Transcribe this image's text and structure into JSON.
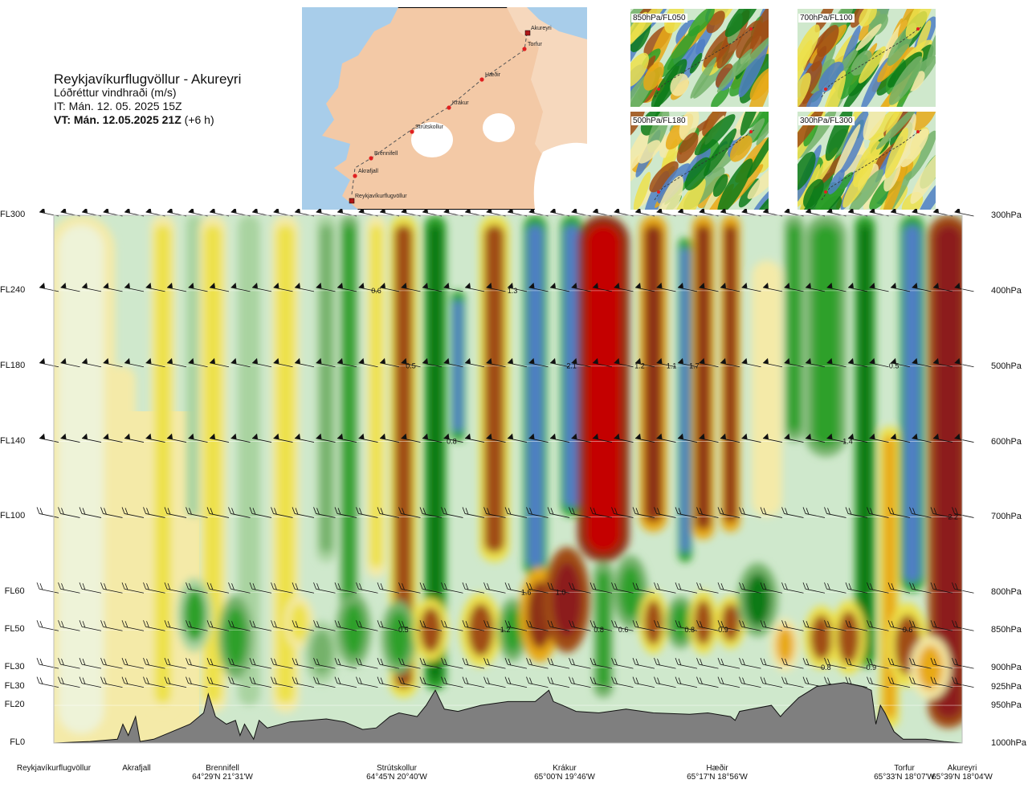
{
  "header": {
    "route": "Reykjavíkurflugvöllur - Akureyri",
    "variable": "Lóðréttur vindhraði (m/s)",
    "issue_time": "IT: Mán. 12. 05. 2025 15Z",
    "valid_time_bold": "VT: Mán. 12.05.2025 21Z",
    "valid_time_offset": "(+6 h)"
  },
  "map": {
    "stations": [
      "Reykjavíkurflugvöllur",
      "Akrafjall",
      "Brennifell",
      "Strútskollur",
      "Krákur",
      "Hæðir",
      "Torfur",
      "Akureyri"
    ],
    "colors": {
      "land": "#f3c9a6",
      "sea": "#a8cdea",
      "glacier": "#ffffff",
      "route": "#555555",
      "station": "#e02020"
    }
  },
  "mini_maps": [
    {
      "label": "850hPa/FL050"
    },
    {
      "label": "700hPa/FL100"
    },
    {
      "label": "500hPa/FL180"
    },
    {
      "label": "300hPa/FL300"
    }
  ],
  "chart_data": {
    "type": "heatmap",
    "x_stations": [
      {
        "name": "Reykjavíkurflugvöllur",
        "coord": "",
        "x": 0
      },
      {
        "name": "Akrafjall",
        "coord": "",
        "x": 0.09
      },
      {
        "name": "Brennifell",
        "coord": "64°29'N 21°31'W",
        "x": 0.18
      },
      {
        "name": "Strútskollur",
        "coord": "64°45'N 20°40'W",
        "x": 0.38
      },
      {
        "name": "Krákur",
        "coord": "65°00'N 19°46'W",
        "x": 0.57
      },
      {
        "name": "Hæðir",
        "coord": "65°17'N 18°56'W",
        "x": 0.75
      },
      {
        "name": "Torfur",
        "coord": "65°33'N 18°07'W",
        "x": 0.93
      },
      {
        "name": "Akureyri",
        "coord": "65°39'N 18°04'W",
        "x": 1.0
      }
    ],
    "levels": [
      {
        "fl": "FL300",
        "hpa": "300hPa",
        "p": 300
      },
      {
        "fl": "FL240",
        "hpa": "400hPa",
        "p": 400
      },
      {
        "fl": "FL180",
        "hpa": "500hPa",
        "p": 500
      },
      {
        "fl": "FL140",
        "hpa": "600hPa",
        "p": 600
      },
      {
        "fl": "FL100",
        "hpa": "700hPa",
        "p": 700
      },
      {
        "fl": "FL60",
        "hpa": "800hPa",
        "p": 800
      },
      {
        "fl": "FL50",
        "hpa": "850hPa",
        "p": 850
      },
      {
        "fl": "FL30",
        "hpa": "900hPa",
        "p": 900
      },
      {
        "fl": "FL30",
        "hpa": "925hPa",
        "p": 925
      },
      {
        "fl": "FL20",
        "hpa": "950hPa",
        "p": 950
      },
      {
        "fl": "FL0",
        "hpa": "1000hPa",
        "p": 1000
      }
    ],
    "y_range": [
      300,
      1000
    ],
    "bands": [
      {
        "x": 0.03,
        "w": 0.05,
        "v": 0.1,
        "top": 300,
        "bottom": 1000
      },
      {
        "x": 0.075,
        "w": 0.02,
        "v": 0.3,
        "top": 500,
        "bottom": 1000
      },
      {
        "x": 0.12,
        "w": 0.018,
        "v": 0.4,
        "top": 300,
        "bottom": 960
      },
      {
        "x": 0.155,
        "w": 0.012,
        "v": -0.2,
        "top": 300,
        "bottom": 700
      },
      {
        "x": 0.175,
        "w": 0.02,
        "v": 0.5,
        "top": 300,
        "bottom": 960
      },
      {
        "x": 0.215,
        "w": 0.016,
        "v": -0.3,
        "top": 300,
        "bottom": 950
      },
      {
        "x": 0.255,
        "w": 0.02,
        "v": 0.5,
        "top": 300,
        "bottom": 960
      },
      {
        "x": 0.3,
        "w": 0.014,
        "v": -0.5,
        "top": 300,
        "bottom": 760
      },
      {
        "x": 0.325,
        "w": 0.013,
        "v": -0.8,
        "top": 300,
        "bottom": 880
      },
      {
        "x": 0.355,
        "w": 0.014,
        "v": 0.4,
        "top": 300,
        "bottom": 780
      },
      {
        "x": 0.385,
        "w": 0.02,
        "v": 0.8,
        "top": 300,
        "bottom": 940
      },
      {
        "x": 0.42,
        "w": 0.016,
        "v": -1.0,
        "top": 300,
        "bottom": 930
      },
      {
        "x": 0.445,
        "w": 0.01,
        "v": -1.4,
        "top": 400,
        "bottom": 600
      },
      {
        "x": 0.485,
        "w": 0.022,
        "v": 0.9,
        "top": 300,
        "bottom": 760
      },
      {
        "x": 0.53,
        "w": 0.017,
        "v": -1.2,
        "top": 300,
        "bottom": 780
      },
      {
        "x": 0.57,
        "w": 0.016,
        "v": -1.5,
        "top": 300,
        "bottom": 700
      },
      {
        "x": 0.605,
        "w": 0.038,
        "v": 2.2,
        "top": 300,
        "bottom": 760
      },
      {
        "x": 0.605,
        "w": 0.014,
        "v": -0.6,
        "top": 760,
        "bottom": 940
      },
      {
        "x": 0.66,
        "w": 0.02,
        "v": 1.2,
        "top": 300,
        "bottom": 720
      },
      {
        "x": 0.695,
        "w": 0.01,
        "v": -1.2,
        "top": 330,
        "bottom": 760
      },
      {
        "x": 0.715,
        "w": 0.016,
        "v": 1.3,
        "top": 300,
        "bottom": 730
      },
      {
        "x": 0.745,
        "w": 0.014,
        "v": 1.1,
        "top": 300,
        "bottom": 720
      },
      {
        "x": 0.785,
        "w": 0.022,
        "v": 0.3,
        "top": 360,
        "bottom": 700
      },
      {
        "x": 0.815,
        "w": 0.014,
        "v": -0.6,
        "top": 300,
        "bottom": 600
      },
      {
        "x": 0.85,
        "w": 0.03,
        "v": -0.7,
        "top": 300,
        "bottom": 620
      },
      {
        "x": 0.893,
        "w": 0.015,
        "v": -1.0,
        "top": 300,
        "bottom": 900
      },
      {
        "x": 0.92,
        "w": 0.014,
        "v": 0.7,
        "top": 580,
        "bottom": 980
      },
      {
        "x": 0.945,
        "w": 0.018,
        "v": -1.2,
        "top": 300,
        "bottom": 800
      },
      {
        "x": 0.985,
        "w": 0.03,
        "v": 1.6,
        "top": 300,
        "bottom": 980
      }
    ],
    "spots": [
      {
        "x": 0.155,
        "p": 830,
        "rx": 0.012,
        "rp": 70,
        "v": -0.6
      },
      {
        "x": 0.2,
        "p": 860,
        "rx": 0.012,
        "rp": 80,
        "v": -0.7
      },
      {
        "x": 0.27,
        "p": 840,
        "rx": 0.01,
        "rp": 50,
        "v": 0.5
      },
      {
        "x": 0.295,
        "p": 880,
        "rx": 0.012,
        "rp": 60,
        "v": -0.5
      },
      {
        "x": 0.33,
        "p": 850,
        "rx": 0.012,
        "rp": 70,
        "v": -0.8
      },
      {
        "x": 0.38,
        "p": 860,
        "rx": 0.012,
        "rp": 70,
        "v": -0.8
      },
      {
        "x": 0.415,
        "p": 850,
        "rx": 0.012,
        "rp": 60,
        "v": 0.8
      },
      {
        "x": 0.47,
        "p": 850,
        "rx": 0.014,
        "rp": 70,
        "v": 0.9
      },
      {
        "x": 0.505,
        "p": 850,
        "rx": 0.01,
        "rp": 60,
        "v": -0.8
      },
      {
        "x": 0.535,
        "p": 830,
        "rx": 0.014,
        "rp": 90,
        "v": 1.2
      },
      {
        "x": 0.565,
        "p": 810,
        "rx": 0.016,
        "rp": 100,
        "v": 1.6
      },
      {
        "x": 0.635,
        "p": 800,
        "rx": 0.012,
        "rp": 70,
        "v": -0.8
      },
      {
        "x": 0.66,
        "p": 840,
        "rx": 0.01,
        "rp": 60,
        "v": 0.8
      },
      {
        "x": 0.69,
        "p": 840,
        "rx": 0.01,
        "rp": 50,
        "v": -0.8
      },
      {
        "x": 0.715,
        "p": 840,
        "rx": 0.01,
        "rp": 60,
        "v": 0.8
      },
      {
        "x": 0.745,
        "p": 840,
        "rx": 0.01,
        "rp": 50,
        "v": 0.9
      },
      {
        "x": 0.775,
        "p": 810,
        "rx": 0.014,
        "rp": 70,
        "v": -0.9
      },
      {
        "x": 0.805,
        "p": 870,
        "rx": 0.01,
        "rp": 50,
        "v": 0.6
      },
      {
        "x": 0.845,
        "p": 860,
        "rx": 0.012,
        "rp": 60,
        "v": 0.9
      },
      {
        "x": 0.875,
        "p": 860,
        "rx": 0.012,
        "rp": 70,
        "v": 0.8
      },
      {
        "x": 0.94,
        "p": 870,
        "rx": 0.014,
        "rp": 80,
        "v": 1.0
      },
      {
        "x": 0.965,
        "p": 900,
        "rx": 0.014,
        "rp": 60,
        "v": 0.6
      }
    ],
    "value_labels": [
      {
        "text": "0.6",
        "x": 0.355,
        "p": 400
      },
      {
        "text": "1.3",
        "x": 0.505,
        "p": 400
      },
      {
        "text": "0.5",
        "x": 0.393,
        "p": 500
      },
      {
        "text": "2.1",
        "x": 0.57,
        "p": 500
      },
      {
        "text": "1.2",
        "x": 0.645,
        "p": 500
      },
      {
        "text": "1.1",
        "x": 0.68,
        "p": 500
      },
      {
        "text": "1.7",
        "x": 0.705,
        "p": 500
      },
      {
        "text": "0.5",
        "x": 0.925,
        "p": 500
      },
      {
        "text": "0.8",
        "x": 0.438,
        "p": 600
      },
      {
        "text": "1.4",
        "x": 0.874,
        "p": 600
      },
      {
        "text": "2.2",
        "x": 0.99,
        "p": 700
      },
      {
        "text": "1.6",
        "x": 0.52,
        "p": 800
      },
      {
        "text": "1.0",
        "x": 0.558,
        "p": 800
      },
      {
        "text": "0.5",
        "x": 0.385,
        "p": 850
      },
      {
        "text": "1.2",
        "x": 0.497,
        "p": 850
      },
      {
        "text": "0.8",
        "x": 0.6,
        "p": 850
      },
      {
        "text": "0.6",
        "x": 0.627,
        "p": 850
      },
      {
        "text": "0.8",
        "x": 0.7,
        "p": 850
      },
      {
        "text": "0.9",
        "x": 0.737,
        "p": 850
      },
      {
        "text": "0.6",
        "x": 0.94,
        "p": 850
      },
      {
        "text": "0.8",
        "x": 0.85,
        "p": 900
      },
      {
        "text": "0.9",
        "x": 0.9,
        "p": 900
      }
    ],
    "terrain": [
      [
        0,
        1000
      ],
      [
        0.04,
        998
      ],
      [
        0.07,
        995
      ],
      [
        0.076,
        975
      ],
      [
        0.082,
        990
      ],
      [
        0.09,
        965
      ],
      [
        0.095,
        998
      ],
      [
        0.11,
        995
      ],
      [
        0.13,
        985
      ],
      [
        0.15,
        975
      ],
      [
        0.165,
        960
      ],
      [
        0.17,
        935
      ],
      [
        0.178,
        965
      ],
      [
        0.19,
        975
      ],
      [
        0.2,
        970
      ],
      [
        0.205,
        990
      ],
      [
        0.21,
        975
      ],
      [
        0.215,
        985
      ],
      [
        0.22,
        995
      ],
      [
        0.226,
        970
      ],
      [
        0.235,
        980
      ],
      [
        0.26,
        972
      ],
      [
        0.3,
        968
      ],
      [
        0.32,
        972
      ],
      [
        0.34,
        982
      ],
      [
        0.355,
        980
      ],
      [
        0.37,
        965
      ],
      [
        0.38,
        960
      ],
      [
        0.4,
        965
      ],
      [
        0.41,
        950
      ],
      [
        0.42,
        930
      ],
      [
        0.43,
        955
      ],
      [
        0.445,
        958
      ],
      [
        0.47,
        950
      ],
      [
        0.5,
        945
      ],
      [
        0.53,
        945
      ],
      [
        0.545,
        930
      ],
      [
        0.55,
        945
      ],
      [
        0.56,
        950
      ],
      [
        0.575,
        958
      ],
      [
        0.6,
        960
      ],
      [
        0.63,
        955
      ],
      [
        0.66,
        960
      ],
      [
        0.7,
        962
      ],
      [
        0.72,
        960
      ],
      [
        0.745,
        965
      ],
      [
        0.75,
        970
      ],
      [
        0.755,
        958
      ],
      [
        0.79,
        950
      ],
      [
        0.8,
        965
      ],
      [
        0.805,
        958
      ],
      [
        0.82,
        940
      ],
      [
        0.84,
        925
      ],
      [
        0.87,
        920
      ],
      [
        0.89,
        925
      ],
      [
        0.9,
        930
      ],
      [
        0.905,
        975
      ],
      [
        0.91,
        950
      ],
      [
        0.915,
        960
      ],
      [
        0.925,
        985
      ],
      [
        0.935,
        995
      ],
      [
        0.96,
        995
      ],
      [
        0.98,
        998
      ],
      [
        1,
        1000
      ]
    ],
    "colorscale": [
      {
        "v": -2.0,
        "c": "#6c5bd9"
      },
      {
        "v": -1.4,
        "c": "#4f7fc4"
      },
      {
        "v": -1.0,
        "c": "#0c7a18"
      },
      {
        "v": -0.7,
        "c": "#2ea02a"
      },
      {
        "v": -0.4,
        "c": "#74b26a"
      },
      {
        "v": -0.2,
        "c": "#a9d3a0"
      },
      {
        "v": 0.0,
        "c": "#cfe8cc"
      },
      {
        "v": 0.15,
        "c": "#eef3d8"
      },
      {
        "v": 0.25,
        "c": "#f4eaa8"
      },
      {
        "v": 0.4,
        "c": "#ede14b"
      },
      {
        "v": 0.6,
        "c": "#e8a917"
      },
      {
        "v": 0.9,
        "c": "#a04d14"
      },
      {
        "v": 1.3,
        "c": "#8d3018"
      },
      {
        "v": 1.8,
        "c": "#8c1a1a"
      },
      {
        "v": 2.2,
        "c": "#c40303"
      }
    ]
  }
}
